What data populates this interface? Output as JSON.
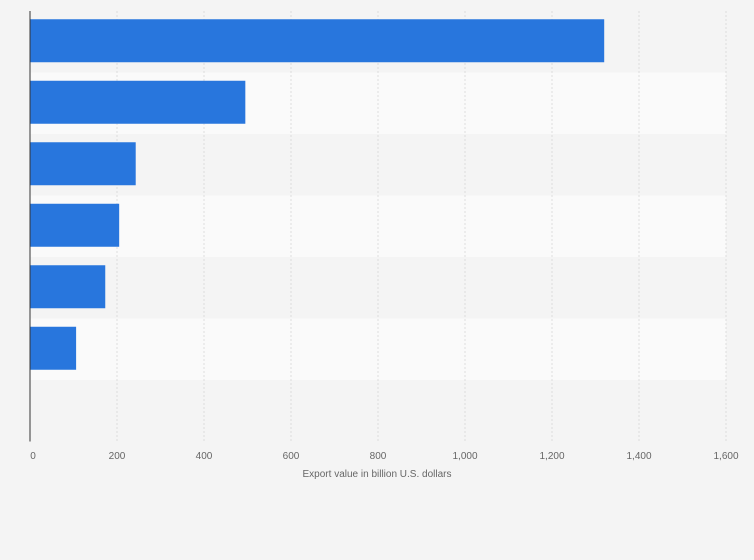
{
  "chart_data": {
    "type": "bar",
    "orientation": "horizontal",
    "categories": [
      "",
      "",
      "",
      "",
      "",
      "",
      ""
    ],
    "values": [
      1320,
      495,
      243,
      205,
      173,
      106,
      null
    ],
    "xlabel": "Export value in billion U.S. dollars",
    "ylabel": "",
    "xlim": [
      0,
      1600
    ],
    "x_ticks": [
      0,
      200,
      400,
      600,
      800,
      1000,
      1200,
      1400,
      1600
    ],
    "x_tick_labels": [
      "0",
      "200",
      "400",
      "600",
      "800",
      "1,000",
      "1,200",
      "1,400",
      "1,600"
    ],
    "grid": true,
    "legend": "none",
    "bar_color": "#2876dd",
    "band_colors": [
      "#f4f4f4",
      "#fafafa"
    ],
    "grid_color": "#dddddd",
    "axis_color": "#333333"
  }
}
